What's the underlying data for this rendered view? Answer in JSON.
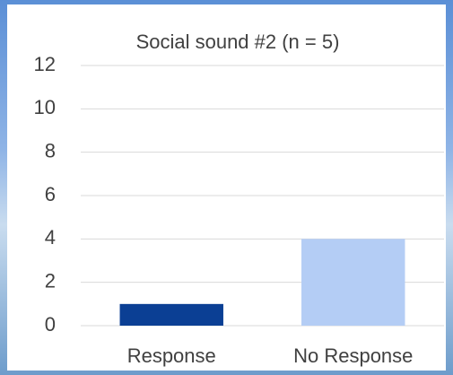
{
  "chart_data": {
    "type": "bar",
    "title": "Social sound #2 (n = 5)",
    "categories": [
      "Response",
      "No Response"
    ],
    "values": [
      1,
      4
    ],
    "colors": [
      "#0b3f94",
      "#b4cdf5"
    ],
    "ylim": [
      0,
      12
    ],
    "yticks": [
      0,
      2,
      4,
      6,
      8,
      10,
      12
    ],
    "grid": true
  }
}
